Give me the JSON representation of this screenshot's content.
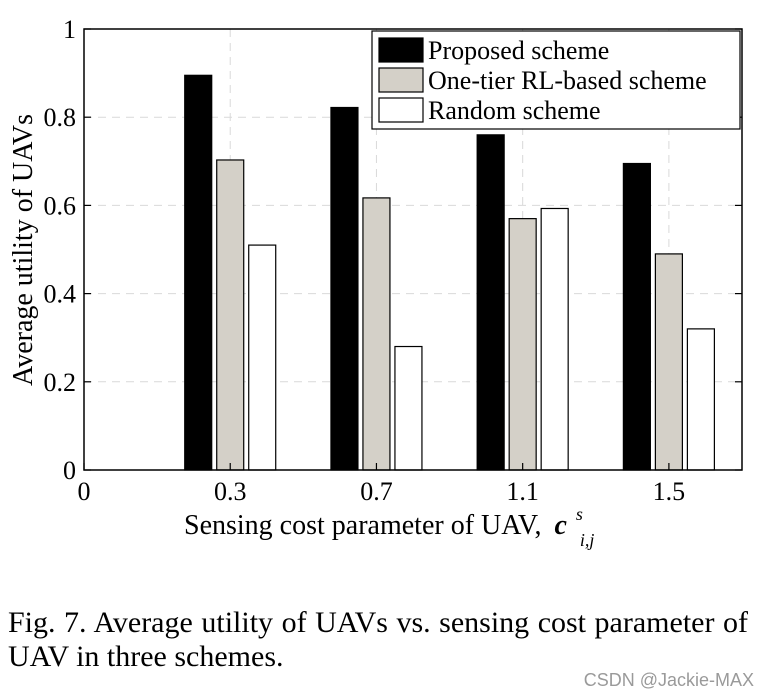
{
  "chart_data": {
    "type": "bar",
    "categories": [
      "0.3",
      "0.7",
      "1.1",
      "1.5"
    ],
    "x_ticks": [
      "0",
      "0.3",
      "0.7",
      "1.1",
      "1.5"
    ],
    "series": [
      {
        "name": "Proposed scheme",
        "values": [
          0.895,
          0.822,
          0.76,
          0.695
        ],
        "color": "#000000"
      },
      {
        "name": "One-tier RL-based scheme",
        "values": [
          0.703,
          0.617,
          0.57,
          0.49
        ],
        "color": "#d4d0c8"
      },
      {
        "name": "Random scheme",
        "values": [
          0.51,
          0.28,
          0.593,
          0.32
        ],
        "color": "#ffffff"
      }
    ],
    "y_ticks": [
      "0",
      "0.2",
      "0.4",
      "0.6",
      "0.8",
      "1"
    ],
    "ylim": [
      0,
      1
    ],
    "xlabel": "Sensing cost parameter of UAV,",
    "xlabel_symbol": "c",
    "xlabel_sup": "s",
    "xlabel_sub": "i,j",
    "ylabel": "Average utility of UAVs",
    "grid": true,
    "legend_position": "top-right"
  },
  "caption": "Fig. 7.   Average utility of UAVs vs. sensing cost parameter of UAV in three schemes.",
  "watermark": "CSDN @Jackie-MAX"
}
